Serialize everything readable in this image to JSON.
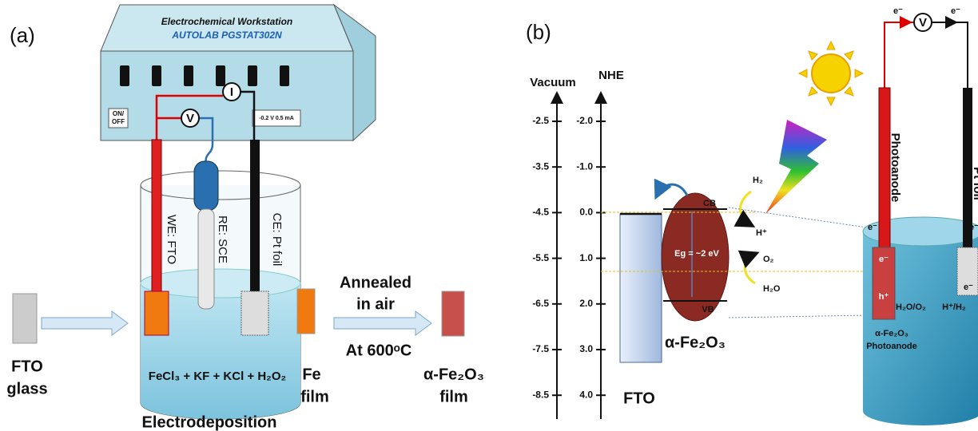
{
  "panel_a": {
    "label": "(a)",
    "workstation": {
      "title": "Electrochemical Workstation",
      "model": "AUTOLAB PGSTAT302N",
      "switch": [
        "ON/",
        "OFF"
      ],
      "display": "-0.2 V 0.5 mA",
      "ammeter": "I",
      "voltmeter": "V"
    },
    "electrodes": [
      "WE: FTO",
      "RE: SCE",
      "CE: Pt foil"
    ],
    "fto_glass": [
      "FTO",
      "glass"
    ],
    "electrolyte": "FeCl₃ + KF + KCl + H₂O₂",
    "process": "Electrodeposition",
    "fe_film": [
      "Fe",
      "film"
    ],
    "anneal": [
      "Annealed",
      "in air"
    ],
    "anneal_temp": "At 600ᵒC",
    "product": [
      "α-Fe₂O₃",
      "film"
    ]
  },
  "panel_b": {
    "label": "(b)",
    "vacuum_axis": {
      "title": "Vacuum",
      "ticks": [
        "-2.5",
        "-3.5",
        "-4.5",
        "-5.5",
        "-6.5",
        "-7.5",
        "-8.5"
      ]
    },
    "nhe_axis": {
      "title": "NHE",
      "ticks": [
        "-2.0",
        "-1.0",
        "0.0",
        "1.0",
        "2.0",
        "3.0",
        "4.0"
      ]
    },
    "fto": "FTO",
    "semiconductor": "α-Fe₂O₃",
    "cb": "CB",
    "vb": "VB",
    "bandgap": "Eg = ~2 eV",
    "reduction": [
      "H₂",
      "H⁺"
    ],
    "oxidation": [
      "O₂",
      "H₂O"
    ],
    "cell": {
      "voltmeter": "V",
      "electron_left": "e⁻",
      "electron_right": "e⁻",
      "anode": "Photoanode",
      "cathode": "Pt foil",
      "anode_e_out": "e⁻",
      "anode_e": "e⁻",
      "anode_h": "h⁺",
      "couple_ox": "H₂O/O₂",
      "couple_red": "H⁺/H₂",
      "cathode_e": "e⁻",
      "cathode_e_in": "e⁻",
      "caption": [
        "α-Fe₂O₃",
        "Photoanode"
      ]
    }
  }
}
